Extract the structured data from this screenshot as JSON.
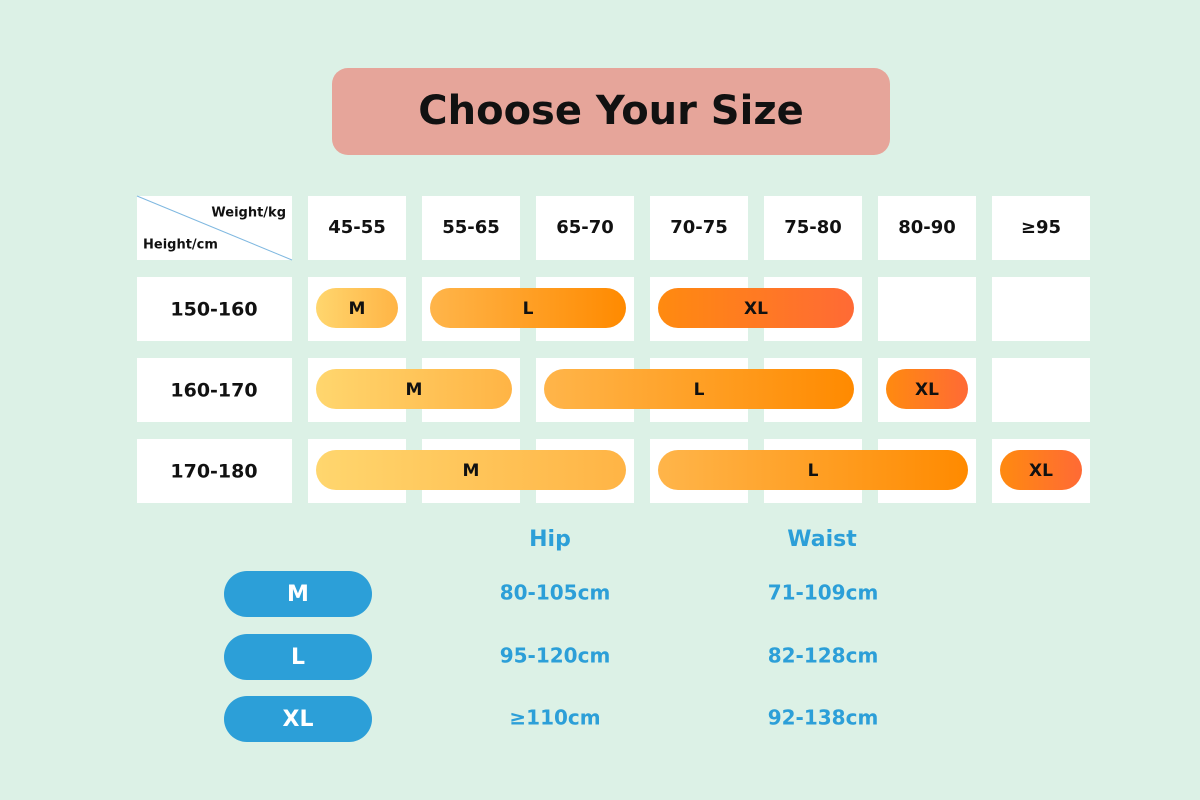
{
  "title": "Choose Your Size",
  "grid": {
    "corner": {
      "column_label": "Weight/kg",
      "row_label": "Height/cm"
    },
    "columns": [
      "45-55",
      "55-65",
      "65-70",
      "70-75",
      "75-80",
      "80-90",
      "≥95"
    ],
    "rows": [
      {
        "height": "150-160",
        "cells": [
          "M",
          "L",
          "L",
          "XL",
          "XL",
          null,
          null
        ]
      },
      {
        "height": "160-170",
        "cells": [
          "M",
          "M",
          "L",
          "L",
          "L",
          "XL",
          null
        ]
      },
      {
        "height": "170-180",
        "cells": [
          "M",
          "M",
          "M",
          "L",
          "L",
          "L",
          "XL"
        ]
      }
    ]
  },
  "measurements": {
    "headers": [
      "Hip",
      "Waist"
    ],
    "rows": [
      {
        "size": "M",
        "hip": "80-105cm",
        "waist": "71-109cm"
      },
      {
        "size": "L",
        "hip": "95-120cm",
        "waist": "82-128cm"
      },
      {
        "size": "XL",
        "hip": "≥110cm",
        "waist": "92-138cm"
      }
    ]
  }
}
